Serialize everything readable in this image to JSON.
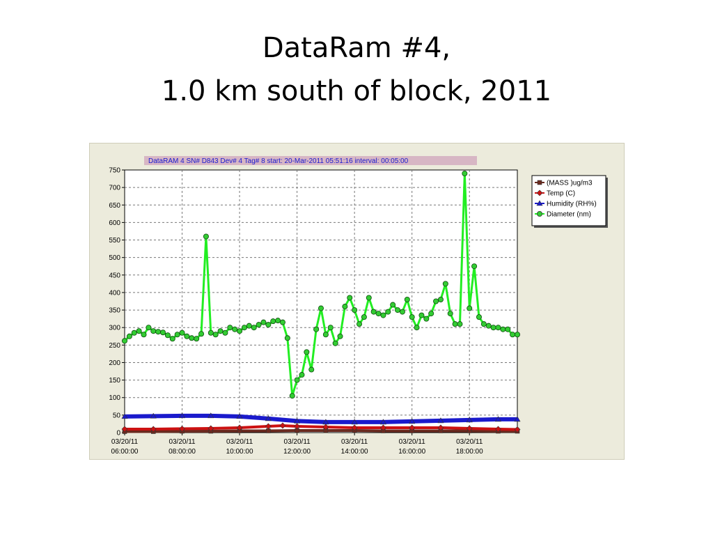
{
  "slide": {
    "title_line1": "DataRam #4,",
    "title_line2": "1.0 km south of block, 2011"
  },
  "chart_data": {
    "type": "line",
    "header": "DataRAM 4   SN# D843       Dev# 4  Tag# 8  start: 20-Mar-2011 05:51:16  interval: 00:05:00",
    "x_range": [
      "03/20/11 06:00:00",
      "03/20/11 19:40:00"
    ],
    "x_ticks": [
      {
        "date": "03/20/11",
        "time": "06:00:00"
      },
      {
        "date": "03/20/11",
        "time": "08:00:00"
      },
      {
        "date": "03/20/11",
        "time": "10:00:00"
      },
      {
        "date": "03/20/11",
        "time": "12:00:00"
      },
      {
        "date": "03/20/11",
        "time": "14:00:00"
      },
      {
        "date": "03/20/11",
        "time": "16:00:00"
      },
      {
        "date": "03/20/11",
        "time": "18:00:00"
      }
    ],
    "ylim": [
      0,
      750
    ],
    "y_ticks": [
      "0",
      "50",
      "100",
      "150",
      "200",
      "250",
      "300",
      "350",
      "400",
      "450",
      "500",
      "550",
      "600",
      "650",
      "700",
      "750"
    ],
    "grid": true,
    "legend_position": "top-right",
    "colors": {
      "mass": "#6b2a1f",
      "temp": "#cc1111",
      "humidity": "#1a1acc",
      "diameter": "#22ee22",
      "diameter_marker": "#33cc33",
      "panel": "#ecebdc",
      "header_bg": "#d7b6c4"
    },
    "series": [
      {
        "name": "(MASS )ug/m3",
        "key": "mass",
        "marker": "square",
        "times": [
          "06:00",
          "07:00",
          "08:00",
          "09:00",
          "10:00",
          "11:00",
          "12:00",
          "13:00",
          "14:00",
          "15:00",
          "16:00",
          "17:00",
          "18:00",
          "19:00",
          "19:40"
        ],
        "values": [
          3,
          3,
          4,
          4,
          5,
          5,
          6,
          6,
          6,
          5,
          5,
          5,
          5,
          4,
          4
        ]
      },
      {
        "name": "Temp (C)",
        "key": "temp",
        "marker": "diamond",
        "times": [
          "06:00",
          "07:00",
          "08:00",
          "09:00",
          "10:00",
          "11:00",
          "11:30",
          "12:00",
          "13:00",
          "14:00",
          "15:00",
          "16:00",
          "17:00",
          "18:00",
          "19:00",
          "19:40"
        ],
        "values": [
          10,
          10,
          11,
          12,
          14,
          18,
          20,
          18,
          16,
          14,
          14,
          14,
          14,
          12,
          10,
          9
        ]
      },
      {
        "name": "Humidity (RH%)",
        "key": "humidity",
        "marker": "triangle",
        "times": [
          "06:00",
          "07:00",
          "08:00",
          "09:00",
          "10:00",
          "11:00",
          "12:00",
          "13:00",
          "14:00",
          "15:00",
          "16:00",
          "17:00",
          "18:00",
          "19:00",
          "19:40"
        ],
        "values": [
          46,
          47,
          48,
          48,
          46,
          40,
          33,
          30,
          30,
          30,
          32,
          34,
          36,
          38,
          38
        ]
      },
      {
        "name": "Diameter (nm)",
        "key": "diameter",
        "marker": "circle",
        "times": [
          "06:00",
          "06:10",
          "06:20",
          "06:30",
          "06:40",
          "06:50",
          "07:00",
          "07:10",
          "07:20",
          "07:30",
          "07:40",
          "07:50",
          "08:00",
          "08:10",
          "08:20",
          "08:30",
          "08:40",
          "08:50",
          "09:00",
          "09:10",
          "09:20",
          "09:30",
          "09:40",
          "09:50",
          "10:00",
          "10:10",
          "10:20",
          "10:30",
          "10:40",
          "10:50",
          "11:00",
          "11:10",
          "11:20",
          "11:30",
          "11:40",
          "11:50",
          "12:00",
          "12:10",
          "12:20",
          "12:30",
          "12:40",
          "12:50",
          "13:00",
          "13:10",
          "13:20",
          "13:30",
          "13:40",
          "13:50",
          "14:00",
          "14:10",
          "14:20",
          "14:30",
          "14:40",
          "14:50",
          "15:00",
          "15:10",
          "15:20",
          "15:30",
          "15:40",
          "15:50",
          "16:00",
          "16:10",
          "16:20",
          "16:30",
          "16:40",
          "16:50",
          "17:00",
          "17:10",
          "17:20",
          "17:30",
          "17:40",
          "17:50",
          "18:00",
          "18:10",
          "18:20",
          "18:30",
          "18:40",
          "18:50",
          "19:00",
          "19:10",
          "19:20",
          "19:30",
          "19:40"
        ],
        "values": [
          262,
          275,
          285,
          290,
          280,
          300,
          290,
          288,
          286,
          278,
          268,
          280,
          285,
          275,
          270,
          268,
          282,
          560,
          285,
          280,
          290,
          285,
          300,
          295,
          290,
          300,
          305,
          300,
          308,
          315,
          308,
          318,
          320,
          315,
          270,
          105,
          150,
          165,
          230,
          180,
          295,
          355,
          280,
          300,
          255,
          275,
          360,
          385,
          350,
          310,
          330,
          385,
          345,
          340,
          335,
          345,
          365,
          350,
          345,
          380,
          330,
          300,
          335,
          325,
          340,
          375,
          380,
          425,
          340,
          310,
          310,
          740,
          355,
          475,
          330,
          310,
          305,
          300,
          300,
          295,
          295,
          280,
          280
        ]
      }
    ]
  }
}
